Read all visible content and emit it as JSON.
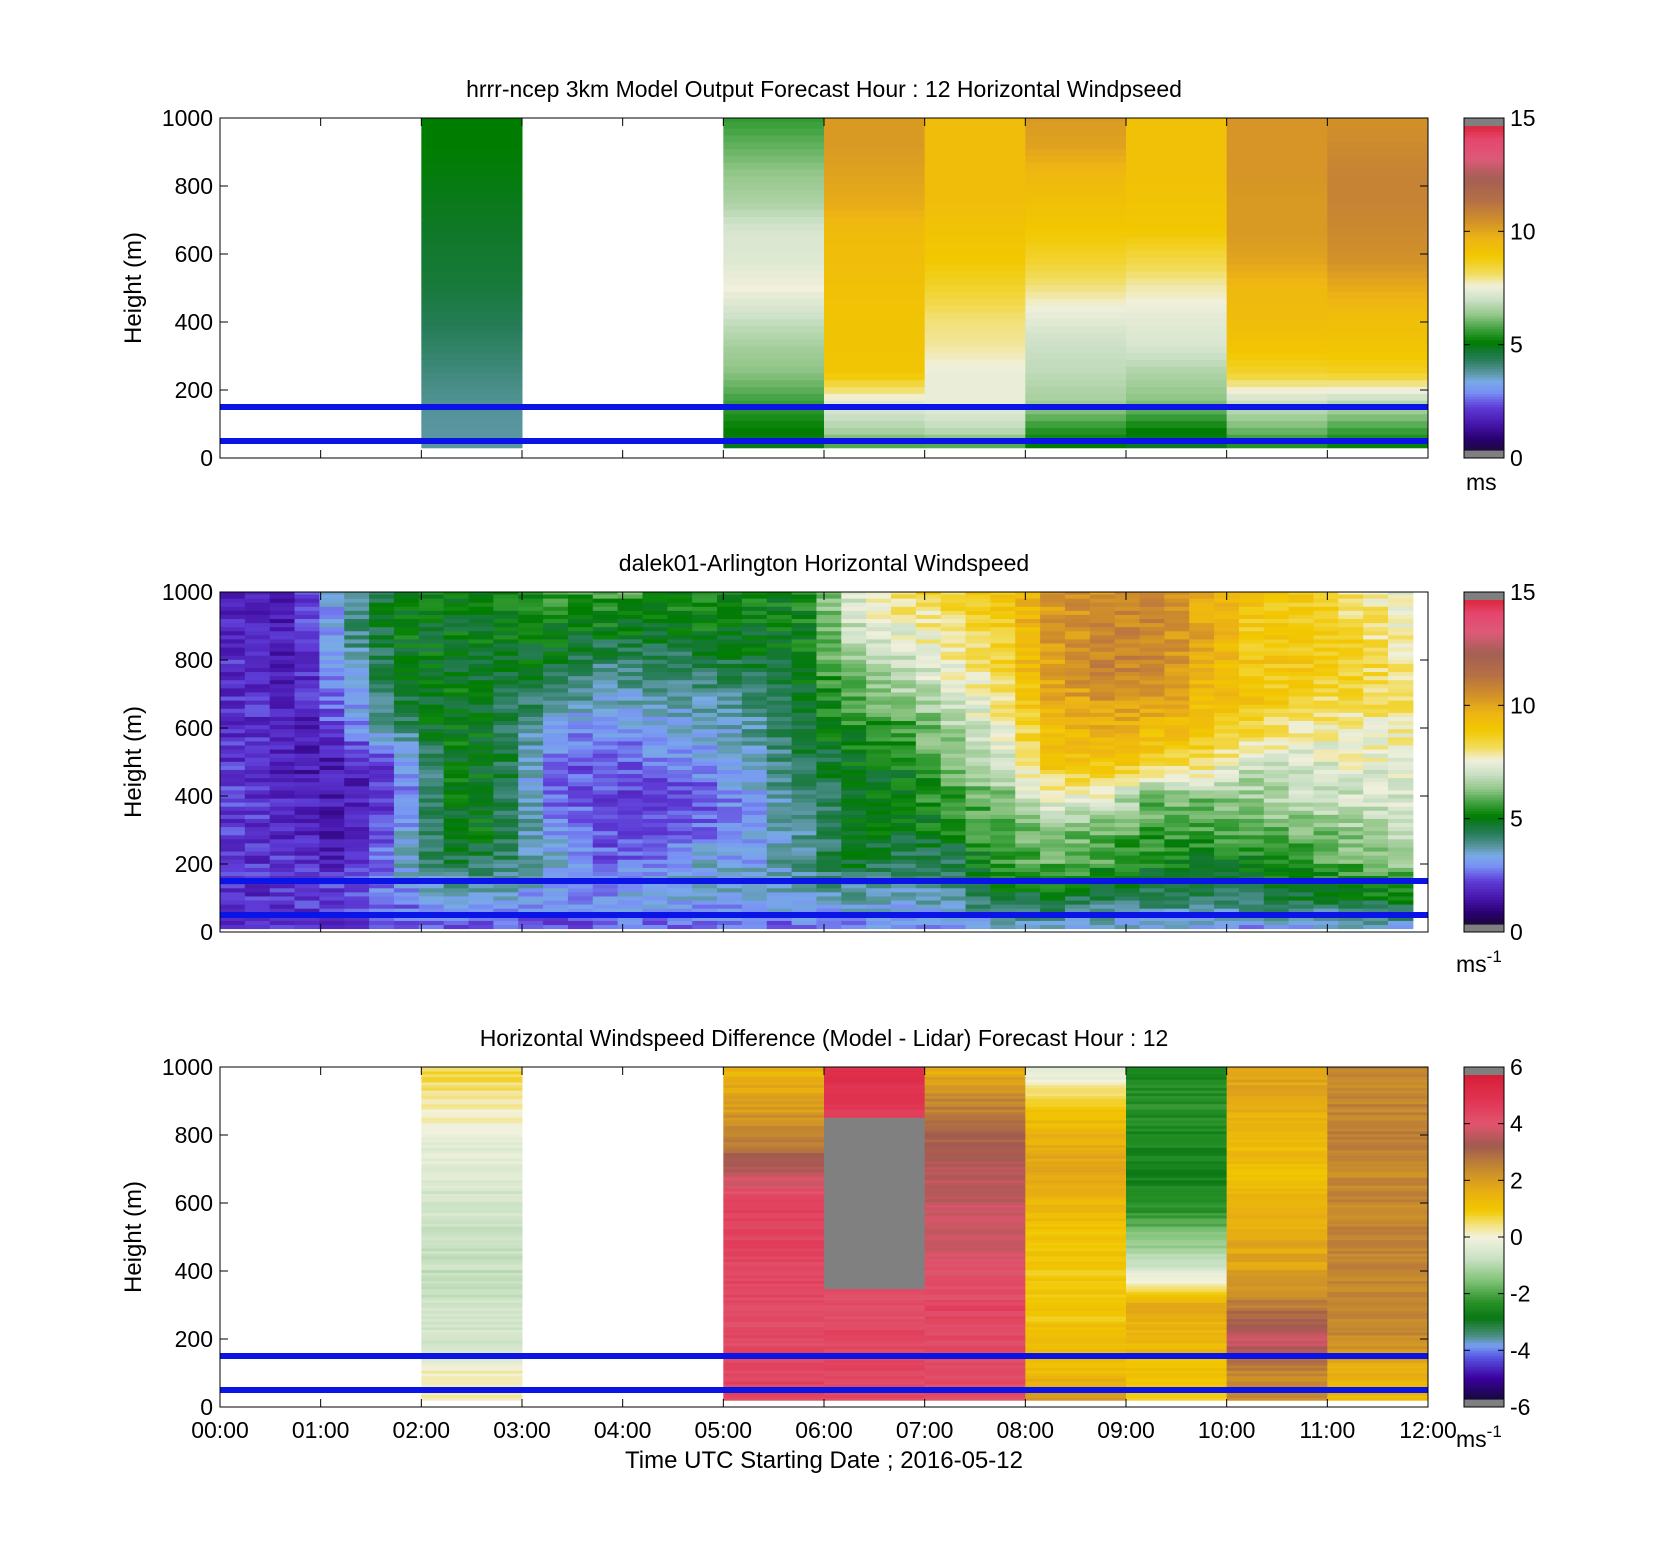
{
  "chart_data": [
    {
      "type": "heatmap",
      "title": "hrrr-ncep 3km Model Output   Forecast Hour : 12 Horizontal Windpseed",
      "ylabel": "Height (m)",
      "xlabel": "",
      "ylim": [
        0,
        1000
      ],
      "yticks": [
        "0",
        "200",
        "400",
        "600",
        "800",
        "1000"
      ],
      "xlim_hours": [
        0,
        12
      ],
      "xticks": [
        "00:00",
        "01:00",
        "02:00",
        "03:00",
        "04:00",
        "05:00",
        "06:00",
        "07:00",
        "08:00",
        "09:00",
        "10:00",
        "11:00",
        "12:00"
      ],
      "show_xticklabels": false,
      "colorbar": {
        "min": 0,
        "max": 15,
        "ticks": [
          "0",
          "5",
          "10",
          "15"
        ],
        "unit": "ms",
        "unit_sup": "",
        "palette": "speed"
      },
      "reference_lines_m": [
        50,
        150
      ],
      "columns": [
        {
          "start_hour": 2,
          "end_hour": 3,
          "bottom_m": 30,
          "values": [
            3.6,
            3.6,
            3.7,
            3.9,
            4.1,
            4.3,
            4.5,
            4.6,
            4.7,
            4.8,
            4.9,
            5.0,
            5.0
          ]
        },
        {
          "start_hour": 5,
          "end_hour": 6,
          "bottom_m": 30,
          "values": [
            4.6,
            5.0,
            5.6,
            6.2,
            6.5,
            7.0,
            7.6,
            7.3,
            7.2,
            6.6,
            6.3,
            5.9,
            5.5
          ]
        },
        {
          "start_hour": 6,
          "end_hour": 7,
          "bottom_m": 30,
          "values": [
            5.0,
            6.6,
            7.4,
            9.1,
            9.2,
            9.2,
            9.3,
            9.4,
            9.5,
            10.0,
            10.2,
            10.4,
            10.4
          ]
        },
        {
          "start_hour": 7,
          "end_hour": 8,
          "bottom_m": 30,
          "values": [
            4.9,
            6.8,
            7.5,
            7.5,
            7.9,
            8.1,
            8.6,
            9.0,
            9.2,
            9.4,
            9.4,
            9.4,
            9.4
          ]
        },
        {
          "start_hour": 8,
          "end_hour": 9,
          "bottom_m": 30,
          "values": [
            4.6,
            5.4,
            6.5,
            6.8,
            7.0,
            7.4,
            8.0,
            8.6,
            9.0,
            9.3,
            9.6,
            10.2,
            10.4
          ]
        },
        {
          "start_hour": 9,
          "end_hour": 10,
          "bottom_m": 30,
          "values": [
            4.5,
            5.0,
            6.2,
            6.6,
            7.2,
            7.4,
            7.8,
            8.4,
            9.0,
            9.2,
            9.3,
            9.3,
            9.3
          ]
        },
        {
          "start_hour": 10,
          "end_hour": 11,
          "bottom_m": 30,
          "values": [
            4.8,
            6.0,
            7.0,
            8.6,
            9.2,
            9.5,
            9.6,
            10.2,
            10.4,
            10.4,
            10.5,
            10.5,
            10.5
          ]
        },
        {
          "start_hour": 11,
          "end_hour": 12,
          "bottom_m": 30,
          "values": [
            4.6,
            5.6,
            6.8,
            8.7,
            9.2,
            9.4,
            10.0,
            10.6,
            10.8,
            11.0,
            11.0,
            10.8,
            10.6
          ]
        }
      ]
    },
    {
      "type": "heatmap",
      "title": "dalek01-Arlington  Horizontal Windspeed",
      "ylabel": "Height (m)",
      "xlabel": "",
      "ylim": [
        0,
        1000
      ],
      "yticks": [
        "0",
        "200",
        "400",
        "600",
        "800",
        "1000"
      ],
      "xlim_hours": [
        0,
        12
      ],
      "xticks": [
        "00:00",
        "01:00",
        "02:00",
        "03:00",
        "04:00",
        "05:00",
        "06:00",
        "07:00",
        "08:00",
        "09:00",
        "10:00",
        "11:00",
        "12:00"
      ],
      "show_xticklabels": false,
      "colorbar": {
        "min": 0,
        "max": 15,
        "ticks": [
          "0",
          "5",
          "10",
          "15"
        ],
        "unit": "ms",
        "unit_sup": "-1",
        "palette": "speed"
      },
      "reference_lines_m": [
        50,
        150
      ],
      "profile_start_hour": 0,
      "profile_end_hour": 11.85,
      "profile_bottom_m": 10,
      "profile_top_m": 1000,
      "height_knots_m": [
        0,
        100,
        200,
        300,
        400,
        500,
        600,
        700,
        800,
        900,
        1000
      ],
      "profiles": [
        {
          "hour": 0.25,
          "values": [
            1.5,
            1.7,
            1.8,
            1.9,
            1.9,
            1.8,
            1.8,
            1.8,
            1.7,
            1.6,
            1.6
          ]
        },
        {
          "hour": 0.75,
          "values": [
            1.6,
            1.8,
            1.8,
            1.6,
            1.5,
            1.3,
            1.3,
            1.4,
            1.4,
            1.4,
            1.4
          ]
        },
        {
          "hour": 1.25,
          "values": [
            1.8,
            2.2,
            1.4,
            1.2,
            1.3,
            1.4,
            2.4,
            2.8,
            3.2,
            3.6,
            3.6
          ]
        },
        {
          "hour": 1.75,
          "values": [
            2.0,
            2.6,
            3.0,
            2.6,
            1.8,
            2.4,
            3.8,
            4.5,
            4.8,
            4.9,
            5.0
          ]
        },
        {
          "hour": 2.25,
          "values": [
            2.3,
            3.0,
            4.4,
            4.9,
            4.9,
            5.0,
            5.0,
            4.9,
            4.8,
            4.8,
            4.9
          ]
        },
        {
          "hour": 2.75,
          "values": [
            2.0,
            3.1,
            4.2,
            4.8,
            4.7,
            4.8,
            4.6,
            4.5,
            4.6,
            4.9,
            5.0
          ]
        },
        {
          "hour": 3.25,
          "values": [
            2.0,
            2.7,
            3.6,
            3.0,
            2.6,
            2.5,
            3.2,
            4.2,
            4.8,
            5.0,
            5.4
          ]
        },
        {
          "hour": 3.75,
          "values": [
            2.1,
            2.8,
            2.3,
            2.2,
            2.0,
            2.1,
            2.6,
            3.4,
            4.1,
            4.9,
            5.6
          ]
        },
        {
          "hour": 4.25,
          "values": [
            2.3,
            3.1,
            2.6,
            2.1,
            2.0,
            2.4,
            3.0,
            3.4,
            4.0,
            4.9,
            5.6
          ]
        },
        {
          "hour": 4.75,
          "values": [
            2.2,
            3.0,
            3.4,
            2.4,
            2.2,
            2.7,
            3.2,
            3.7,
            4.4,
            5.0,
            5.2
          ]
        },
        {
          "hour": 5.25,
          "values": [
            2.4,
            3.2,
            3.0,
            2.8,
            3.0,
            3.3,
            3.5,
            4.0,
            4.5,
            4.9,
            5.0
          ]
        },
        {
          "hour": 5.75,
          "values": [
            2.1,
            3.3,
            3.8,
            3.6,
            3.8,
            4.2,
            4.4,
            4.5,
            4.7,
            4.9,
            5.0
          ]
        },
        {
          "hour": 6.25,
          "values": [
            2.3,
            3.5,
            4.6,
            4.6,
            4.7,
            4.8,
            5.3,
            5.8,
            6.4,
            6.9,
            7.2
          ]
        },
        {
          "hour": 6.75,
          "values": [
            2.6,
            3.2,
            4.1,
            4.8,
            4.9,
            5.0,
            5.4,
            6.4,
            7.0,
            7.5,
            8.3
          ]
        },
        {
          "hour": 7.25,
          "values": [
            2.8,
            3.6,
            4.2,
            5.0,
            5.6,
            6.1,
            6.6,
            7.1,
            7.6,
            8.1,
            8.6
          ]
        },
        {
          "hour": 7.75,
          "values": [
            2.8,
            4.4,
            5.5,
            5.8,
            6.2,
            6.8,
            7.5,
            8.1,
            8.5,
            8.7,
            9.0
          ]
        },
        {
          "hour": 8.25,
          "values": [
            3.0,
            4.6,
            5.8,
            6.2,
            7.5,
            9.0,
            9.5,
            10.0,
            10.3,
            10.4,
            10.4
          ]
        },
        {
          "hour": 8.75,
          "values": [
            2.9,
            4.3,
            5.6,
            6.0,
            7.7,
            9.2,
            9.8,
            10.6,
            10.9,
            10.8,
            10.7
          ]
        },
        {
          "hour": 9.25,
          "values": [
            2.8,
            4.2,
            5.1,
            5.6,
            6.0,
            8.8,
            9.6,
            10.6,
            11.0,
            10.9,
            10.6
          ]
        },
        {
          "hour": 9.75,
          "values": [
            2.6,
            4.1,
            4.8,
            5.5,
            6.2,
            8.3,
            9.2,
            9.6,
            10.0,
            10.1,
            10.0
          ]
        },
        {
          "hour": 10.25,
          "values": [
            2.5,
            4.3,
            5.0,
            5.8,
            6.4,
            7.0,
            8.6,
            9.2,
            9.1,
            9.0,
            9.2
          ]
        },
        {
          "hour": 10.75,
          "values": [
            2.6,
            4.5,
            5.4,
            6.1,
            6.8,
            7.2,
            7.8,
            8.6,
            9.0,
            8.8,
            9.0
          ]
        },
        {
          "hour": 11.25,
          "values": [
            2.8,
            4.6,
            5.8,
            6.4,
            7.0,
            7.4,
            7.8,
            8.4,
            8.7,
            8.4,
            8.0
          ]
        },
        {
          "hour": 11.75,
          "values": [
            3.0,
            5.0,
            6.2,
            6.8,
            7.2,
            7.5,
            7.8,
            8.2,
            7.9,
            7.7,
            7.6
          ]
        }
      ]
    },
    {
      "type": "heatmap",
      "title": "Horizontal Windspeed Difference (Model - Lidar) Forecast Hour : 12",
      "ylabel": "Height (m)",
      "xlabel": "Time UTC  Starting Date ; 2016-05-12",
      "ylim": [
        0,
        1000
      ],
      "yticks": [
        "0",
        "200",
        "400",
        "600",
        "800",
        "1000"
      ],
      "xlim_hours": [
        0,
        12
      ],
      "xticks": [
        "00:00",
        "01:00",
        "02:00",
        "03:00",
        "04:00",
        "05:00",
        "06:00",
        "07:00",
        "08:00",
        "09:00",
        "10:00",
        "11:00",
        "12:00"
      ],
      "show_xticklabels": true,
      "colorbar": {
        "min": -6,
        "max": 6,
        "ticks": [
          "-6",
          "-4",
          "-2",
          "0",
          "2",
          "4",
          "6"
        ],
        "unit": "ms",
        "unit_sup": "-1",
        "palette": "diff"
      },
      "reference_lines_m": [
        50,
        150
      ],
      "height_knots_m": [
        0,
        100,
        200,
        300,
        400,
        500,
        600,
        700,
        800,
        900,
        1000
      ],
      "columns": [
        {
          "start_hour": 2,
          "end_hour": 3,
          "bottom_m": 20,
          "values": [
            0.3,
            0.2,
            -0.6,
            -0.7,
            -0.8,
            -0.7,
            -0.6,
            -0.4,
            -0.2,
            0.4,
            0.8
          ]
        },
        {
          "start_hour": 5,
          "end_hour": 6,
          "bottom_m": 20,
          "values": [
            4.6,
            4.6,
            4.5,
            4.5,
            4.6,
            4.7,
            4.8,
            3.6,
            2.6,
            2.0,
            1.5
          ]
        },
        {
          "start_hour": 6,
          "end_hour": 7,
          "bottom_m": 20,
          "values": [
            4.5,
            4.6,
            4.6,
            4.4,
            null,
            null,
            null,
            null,
            null,
            5.0,
            5.2
          ]
        },
        {
          "start_hour": 7,
          "end_hour": 8,
          "bottom_m": 20,
          "values": [
            4.4,
            4.5,
            4.5,
            4.6,
            4.2,
            4.0,
            3.8,
            3.6,
            3.2,
            2.6,
            1.6
          ]
        },
        {
          "start_hour": 8,
          "end_hour": 9,
          "bottom_m": 20,
          "values": [
            2.4,
            1.4,
            1.2,
            1.0,
            1.0,
            1.1,
            1.5,
            1.9,
            1.6,
            1.0,
            -0.5
          ]
        },
        {
          "start_hour": 9,
          "end_hour": 10,
          "bottom_m": 20,
          "values": [
            1.0,
            1.2,
            1.4,
            1.8,
            -0.5,
            -1.6,
            -2.6,
            -2.8,
            -2.6,
            -2.4,
            -2.8
          ]
        },
        {
          "start_hour": 10,
          "end_hour": 11,
          "bottom_m": 20,
          "values": [
            2.6,
            2.5,
            4.0,
            2.8,
            2.0,
            1.8,
            1.5,
            1.2,
            1.4,
            1.8,
            2.0
          ]
        },
        {
          "start_hour": 11,
          "end_hour": 12,
          "bottom_m": 20,
          "values": [
            1.4,
            1.6,
            2.5,
            2.6,
            2.6,
            2.6,
            2.6,
            2.5,
            2.7,
            2.6,
            2.6
          ]
        }
      ]
    }
  ]
}
